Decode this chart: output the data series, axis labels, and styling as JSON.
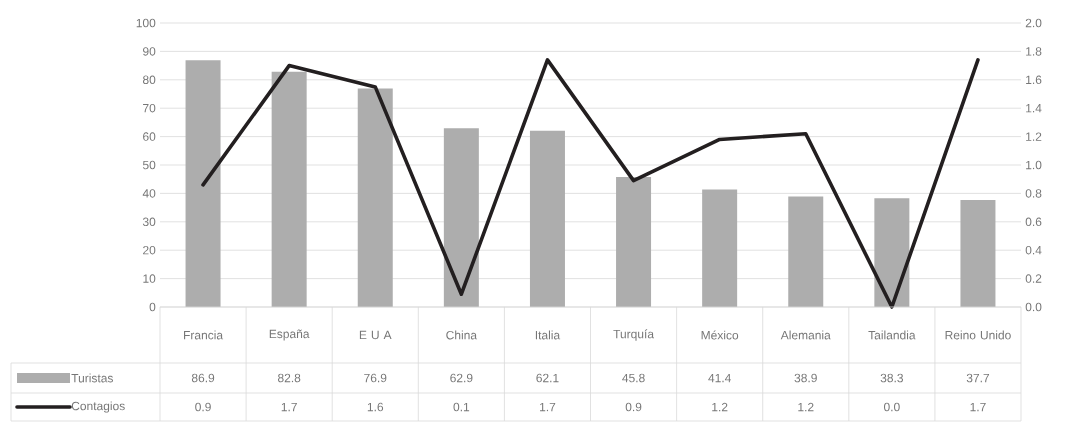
{
  "chart_data": {
    "type": "bar",
    "categories": [
      "Francia",
      "España",
      "E U A",
      "China",
      "Italia",
      "Turquía",
      "México",
      "Alemania",
      "Tailandia",
      "Reino Unido"
    ],
    "series": [
      {
        "name": "Turistas",
        "color": "#adadad",
        "values": [
          86.9,
          82.8,
          76.9,
          62.9,
          62.1,
          45.8,
          41.4,
          38.9,
          38.3,
          37.7
        ],
        "value_labels": [
          "86.9",
          "82.8",
          "76.9",
          "62.9",
          "62.1",
          "45.8",
          "41.4",
          "38.9",
          "38.3",
          "37.7"
        ]
      },
      {
        "name": "Contagios",
        "type": "line",
        "axis": "y2",
        "color": "#231f20",
        "values": [
          0.86,
          1.7,
          1.55,
          0.09,
          1.74,
          0.89,
          1.18,
          1.22,
          0.0,
          1.74
        ],
        "value_labels": [
          "0.9",
          "1.7",
          "1.6",
          "0.1",
          "1.7",
          "0.9",
          "1.2",
          "1.2",
          "0.0",
          "1.7"
        ]
      }
    ],
    "ylim": [
      0,
      100
    ],
    "yticks": [
      0,
      10,
      20,
      30,
      40,
      50,
      60,
      70,
      80,
      90,
      100
    ],
    "y2lim": [
      0,
      2
    ],
    "y2ticks": [
      {
        "value": 0,
        "label": "0.0"
      },
      {
        "value": 0.2,
        "label": "0.2"
      },
      {
        "value": 0.4,
        "label": "0.4"
      },
      {
        "value": 0.6,
        "label": "0.6"
      },
      {
        "value": 0.8,
        "label": "0.8"
      },
      {
        "value": 1.0,
        "label": "1.0"
      },
      {
        "value": 1.2,
        "label": "1.2"
      },
      {
        "value": 1.4,
        "label": "1.4"
      },
      {
        "value": 1.6,
        "label": "1.6"
      },
      {
        "value": 1.8,
        "label": "1.8"
      },
      {
        "value": 2.0,
        "label": "2.0"
      }
    ],
    "grid": "y",
    "legend": "bottom"
  }
}
